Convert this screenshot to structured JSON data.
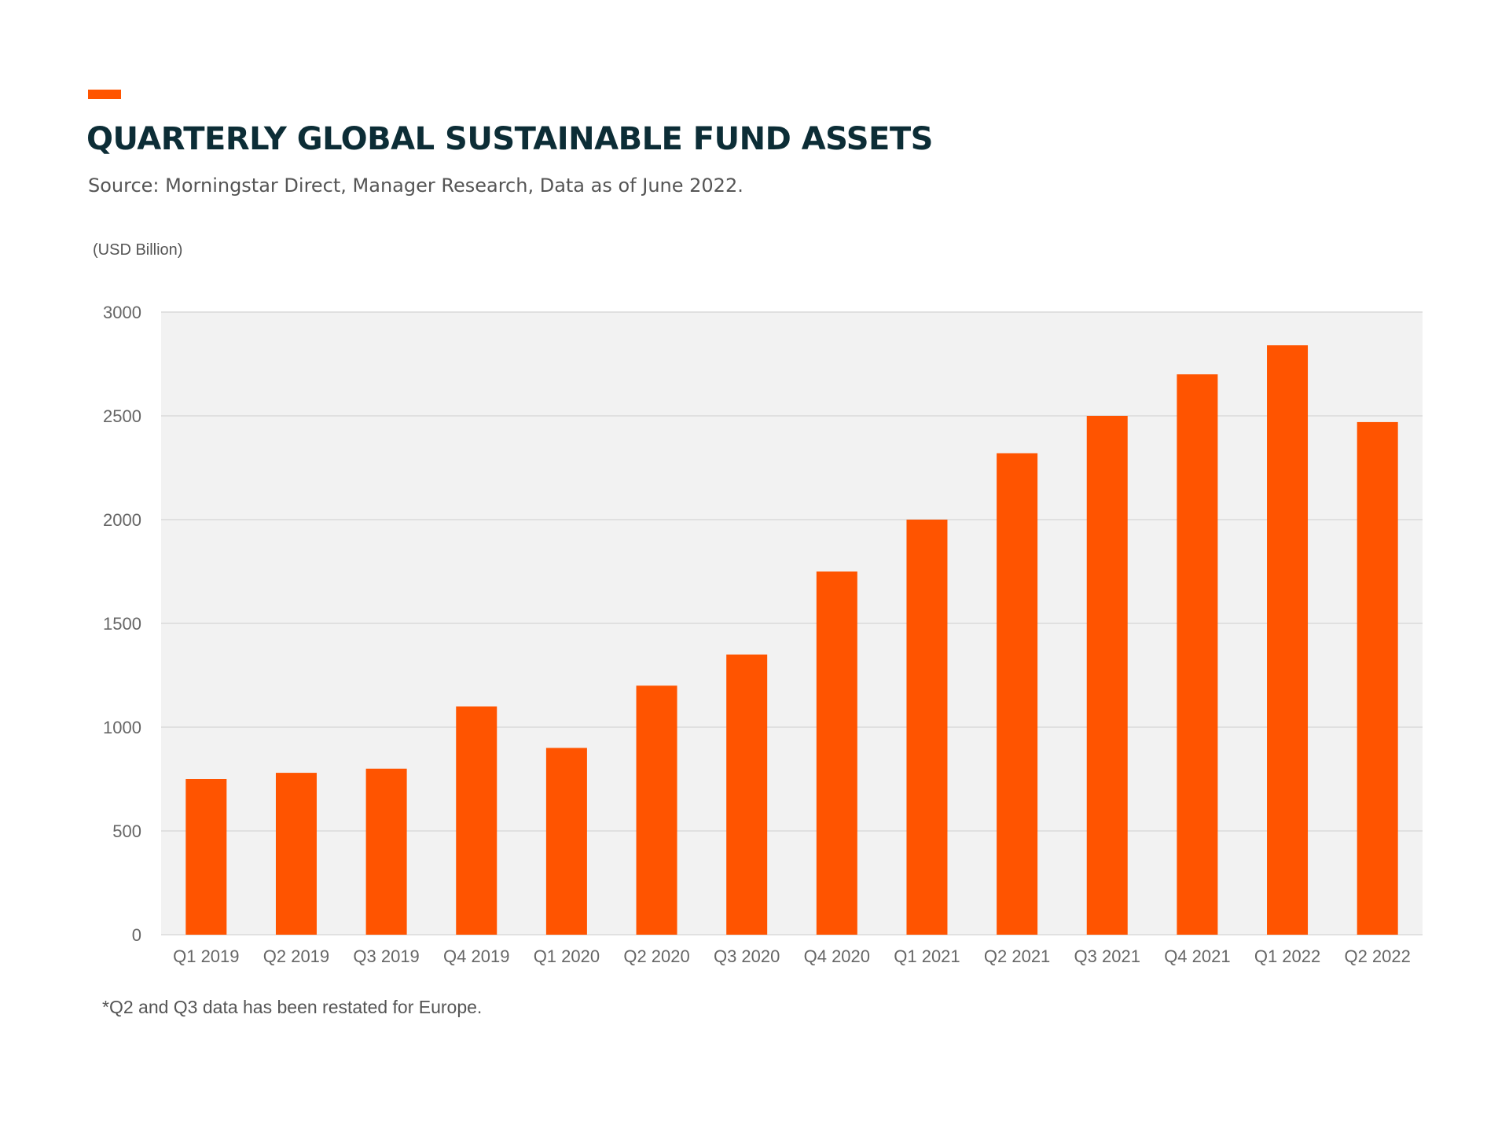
{
  "header": {
    "title": "QUARTERLY GLOBAL SUSTAINABLE FUND ASSETS",
    "subtitle": "Source: Morningstar Direct, Manager Research, Data as of June 2022.",
    "unit_label": "(USD Billion)"
  },
  "footnote": "*Q2 and Q3 data has been restated for Europe.",
  "colors": {
    "accent": "#ff5400",
    "bar": "#ff5400",
    "plot_background": "#f2f2f2",
    "gridline": "#d9d9d9",
    "title": "#0c2d36"
  },
  "chart_data": {
    "type": "bar",
    "title": "QUARTERLY GLOBAL SUSTAINABLE FUND ASSETS",
    "ylabel": "(USD Billion)",
    "xlabel": "",
    "categories": [
      "Q1 2019",
      "Q2 2019",
      "Q3 2019",
      "Q4 2019",
      "Q1 2020",
      "Q2 2020",
      "Q3 2020",
      "Q4 2020",
      "Q1 2021",
      "Q2 2021",
      "Q3 2021",
      "Q4 2021",
      "Q1 2022",
      "Q2 2022"
    ],
    "values": [
      750,
      780,
      800,
      1100,
      900,
      1200,
      1350,
      1750,
      2000,
      2320,
      2500,
      2700,
      2840,
      2470
    ],
    "ylim": [
      0,
      3000
    ],
    "yticks": [
      "0",
      "500",
      "1000",
      "1500",
      "2000",
      "2500",
      "3000"
    ],
    "grid": true,
    "legend": "none"
  }
}
